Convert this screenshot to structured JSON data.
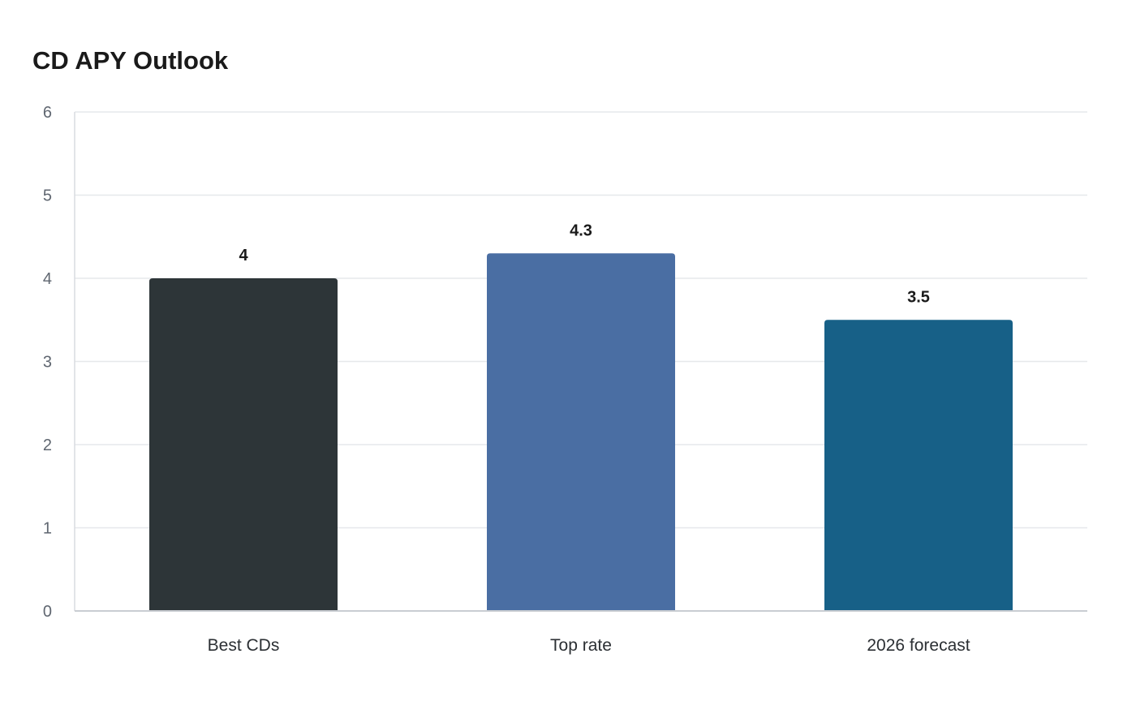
{
  "chart_data": {
    "type": "bar",
    "title": "CD APY Outlook",
    "xlabel": "",
    "ylabel": "",
    "categories": [
      "Best CDs",
      "Top rate",
      "2026 forecast"
    ],
    "values": [
      4,
      4.3,
      3.5
    ],
    "value_labels": [
      "4",
      "4.3",
      "3.5"
    ],
    "colors": [
      "#2d3538",
      "#4a6ea3",
      "#176087"
    ],
    "ylim": [
      0,
      6
    ],
    "yticks": [
      0,
      1,
      2,
      3,
      4,
      5,
      6
    ],
    "grid": "horizontal",
    "legend": "none"
  }
}
